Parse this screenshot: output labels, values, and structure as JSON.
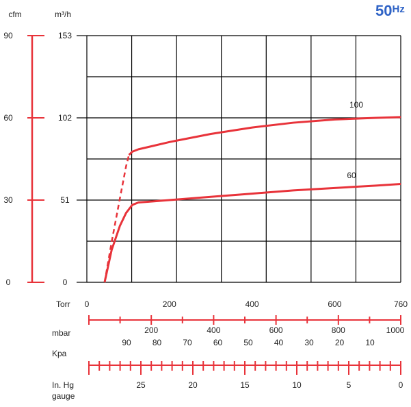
{
  "badge": {
    "value": "50",
    "unit": "Hz",
    "color": "#2f63c6"
  },
  "axes": {
    "cfm_label": "cfm",
    "m3h_label": "m³/h",
    "cfm_ticks": [
      "90",
      "60",
      "30",
      "0"
    ],
    "m3h_ticks": [
      "153",
      "102",
      "51",
      "0"
    ],
    "torr_label": "Torr",
    "torr_ticks": [
      "0",
      "200",
      "400",
      "600",
      "760"
    ],
    "mbar_label": "mbar",
    "mbar_ticks": [
      "200",
      "400",
      "600",
      "800",
      "1000"
    ],
    "kpa_label": "Kpa",
    "kpa_ticks": [
      "90",
      "80",
      "70",
      "60",
      "50",
      "40",
      "30",
      "20",
      "10"
    ],
    "inhg_label": [
      "In. Hg",
      "gauge"
    ],
    "inhg_ticks": [
      "25",
      "20",
      "15",
      "10",
      "5",
      "0"
    ]
  },
  "colors": {
    "curve": "#e8333a",
    "axis_accent": "#e8333a",
    "grid": "#000000",
    "text": "#222222"
  },
  "chart_data": {
    "type": "line",
    "title": "",
    "xlabel": "Torr",
    "ylabel": "m³/h",
    "xlim": [
      0,
      760
    ],
    "ylim": [
      0,
      153
    ],
    "grid": true,
    "series": [
      {
        "name": "100",
        "points": [
          [
            43,
            0
          ],
          [
            60,
            25
          ],
          [
            80,
            52
          ],
          [
            95,
            72
          ],
          [
            102,
            79
          ],
          [
            110,
            81
          ],
          [
            125,
            82.5
          ],
          [
            150,
            84
          ],
          [
            200,
            87
          ],
          [
            300,
            92
          ],
          [
            400,
            96
          ],
          [
            500,
            99
          ],
          [
            600,
            101
          ],
          [
            700,
            102
          ],
          [
            760,
            102.5
          ]
        ],
        "dashed_below_x": 102
      },
      {
        "name": "60",
        "points": [
          [
            43,
            0
          ],
          [
            60,
            20
          ],
          [
            80,
            35
          ],
          [
            95,
            43
          ],
          [
            110,
            48
          ],
          [
            125,
            49.5
          ],
          [
            150,
            50
          ],
          [
            200,
            51
          ],
          [
            300,
            53
          ],
          [
            400,
            55
          ],
          [
            500,
            57
          ],
          [
            600,
            58.5
          ],
          [
            700,
            60
          ],
          [
            760,
            61
          ]
        ]
      }
    ]
  }
}
